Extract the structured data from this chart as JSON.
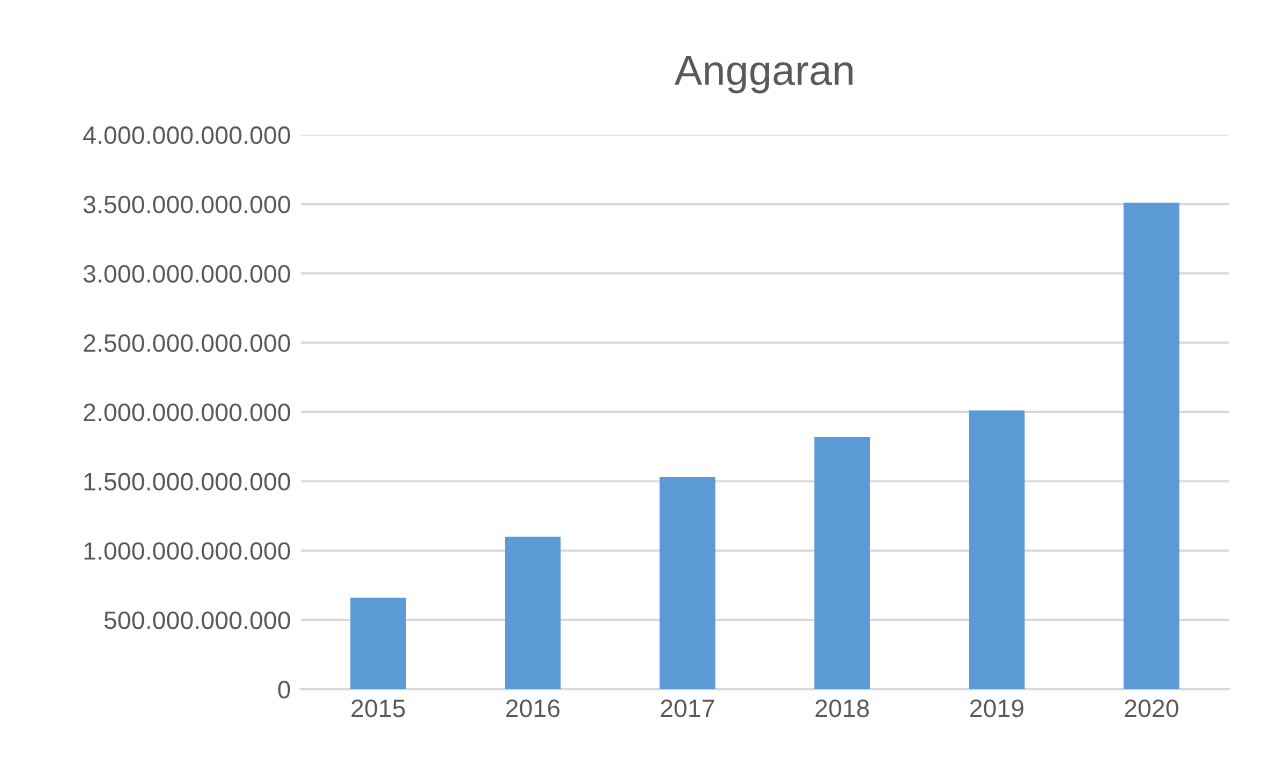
{
  "chart_data": {
    "type": "bar",
    "title": "Anggaran",
    "categories": [
      "2015",
      "2016",
      "2017",
      "2018",
      "2019",
      "2020"
    ],
    "values": [
      660000000000,
      1100000000000,
      1530000000000,
      1820000000000,
      2010000000000,
      3510000000000
    ],
    "color": "#5b9bd5",
    "ylim": [
      0,
      4000000000000
    ],
    "yticks": [
      0,
      {
        "value": 500000000000,
        "label": "500.000.000.000"
      },
      {
        "value": 1000000000000,
        "label": "1.000.000.000.000"
      },
      {
        "value": 1500000000000,
        "label": "1.500.000.000.000"
      },
      {
        "value": 2000000000000,
        "label": "2.000.000.000.000"
      },
      {
        "value": 2500000000000,
        "label": "2.500.000.000.000"
      },
      {
        "value": 3000000000000,
        "label": "3.000.000.000.000"
      },
      {
        "value": 3500000000000,
        "label": "3.500.000.000.000"
      },
      {
        "value": 4000000000000,
        "label": "4.000.000.000.000"
      }
    ],
    "grid": "y"
  }
}
